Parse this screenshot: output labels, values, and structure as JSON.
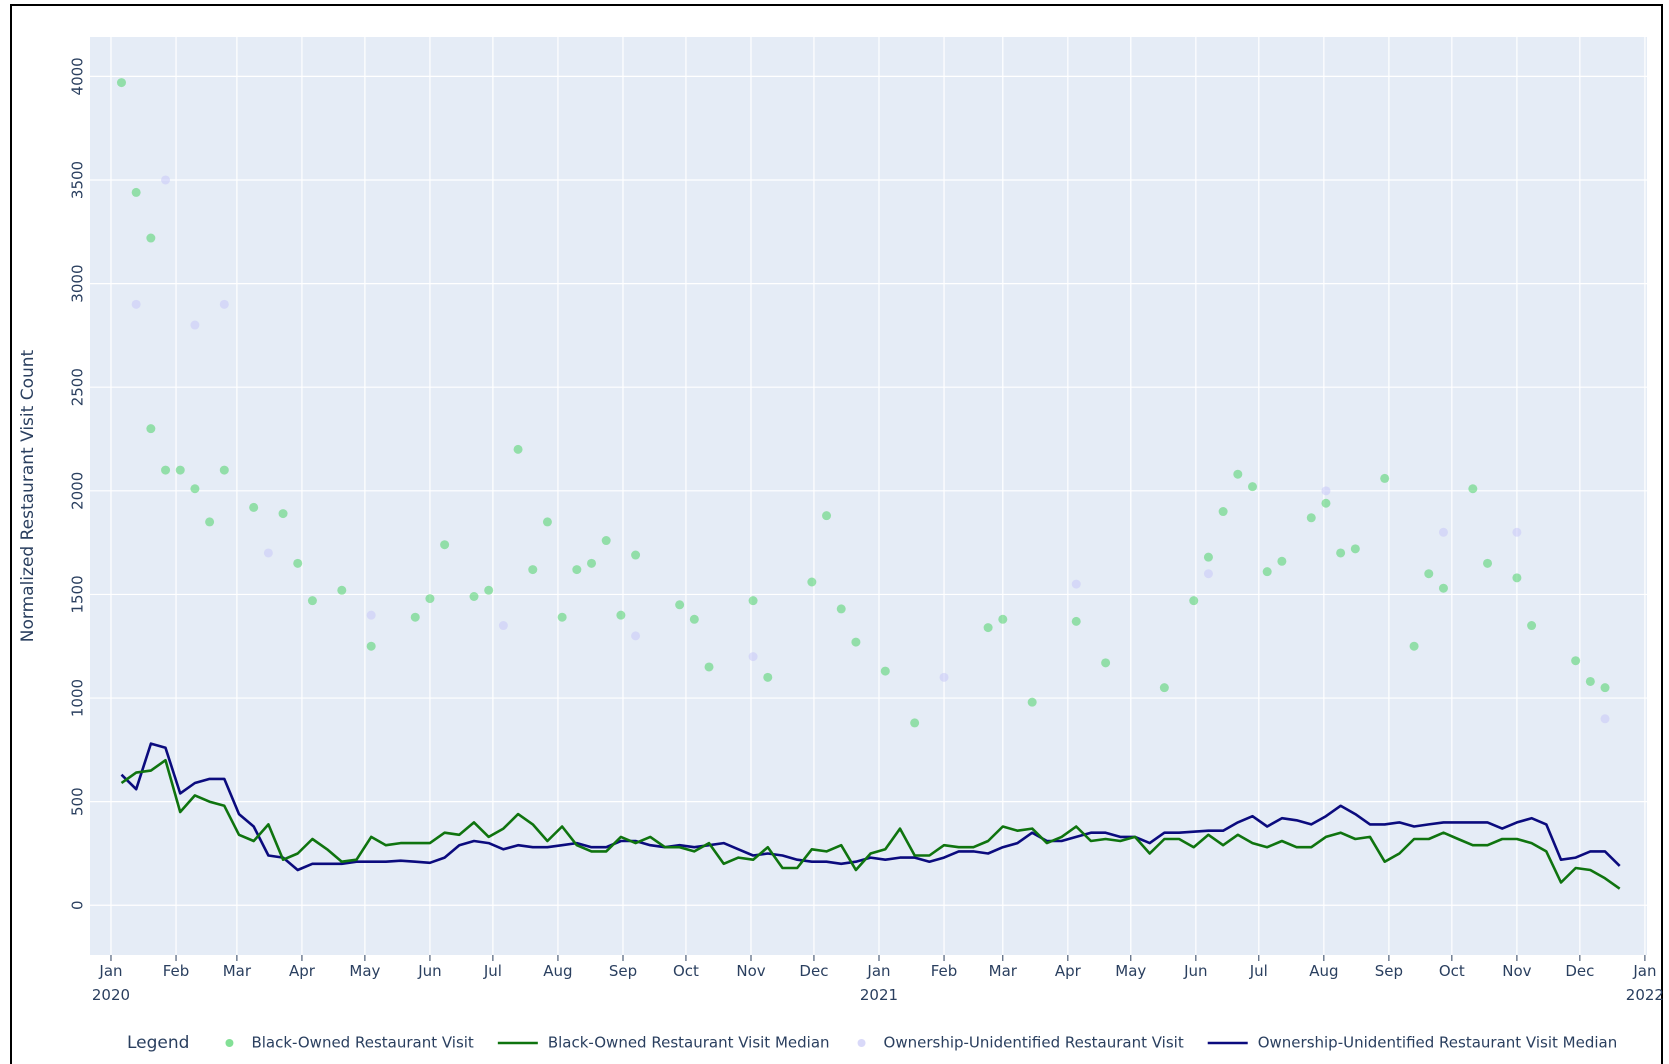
{
  "chart_data": {
    "type": "scatter",
    "y_label": "Normalized Restaurant Visit Count",
    "legend_title": "Legend",
    "xlim": [
      "2019-12-22",
      "2022-01-02"
    ],
    "ylim": [
      -240,
      4190
    ],
    "yticks": [
      0,
      500,
      1000,
      1500,
      2000,
      2500,
      3000,
      3500,
      4000
    ],
    "xticks": [
      {
        "value": "2020-01-01",
        "label": "Jan\n2020"
      },
      {
        "value": "2020-02-01",
        "label": "Feb"
      },
      {
        "value": "2020-03-01",
        "label": "Mar"
      },
      {
        "value": "2020-04-01",
        "label": "Apr"
      },
      {
        "value": "2020-05-01",
        "label": "May"
      },
      {
        "value": "2020-06-01",
        "label": "Jun"
      },
      {
        "value": "2020-07-01",
        "label": "Jul"
      },
      {
        "value": "2020-08-01",
        "label": "Aug"
      },
      {
        "value": "2020-09-01",
        "label": "Sep"
      },
      {
        "value": "2020-10-01",
        "label": "Oct"
      },
      {
        "value": "2020-11-01",
        "label": "Nov"
      },
      {
        "value": "2020-12-01",
        "label": "Dec"
      },
      {
        "value": "2021-01-01",
        "label": "Jan\n2021"
      },
      {
        "value": "2021-02-01",
        "label": "Feb"
      },
      {
        "value": "2021-03-01",
        "label": "Mar"
      },
      {
        "value": "2021-04-01",
        "label": "Apr"
      },
      {
        "value": "2021-05-01",
        "label": "May"
      },
      {
        "value": "2021-06-01",
        "label": "Jun"
      },
      {
        "value": "2021-07-01",
        "label": "Jul"
      },
      {
        "value": "2021-08-01",
        "label": "Aug"
      },
      {
        "value": "2021-09-01",
        "label": "Sep"
      },
      {
        "value": "2021-10-01",
        "label": "Oct"
      },
      {
        "value": "2021-11-01",
        "label": "Nov"
      },
      {
        "value": "2021-12-01",
        "label": "Dec"
      },
      {
        "value": "2022-01-01",
        "label": "Jan\n2022"
      }
    ],
    "grid": true,
    "legend_position": "bottom",
    "series": [
      {
        "name": "Black-Owned Restaurant Visit",
        "mode": "markers",
        "color": "#4fd36a",
        "x": [
          "2020-01-06",
          "2020-01-13",
          "2020-01-20",
          "2020-01-20",
          "2020-01-27",
          "2020-02-03",
          "2020-02-10",
          "2020-02-17",
          "2020-02-24",
          "2020-03-09",
          "2020-03-23",
          "2020-03-30",
          "2020-04-06",
          "2020-04-20",
          "2020-05-04",
          "2020-05-25",
          "2020-06-01",
          "2020-06-08",
          "2020-06-22",
          "2020-06-29",
          "2020-07-13",
          "2020-07-20",
          "2020-07-27",
          "2020-08-03",
          "2020-08-10",
          "2020-08-17",
          "2020-08-24",
          "2020-08-31",
          "2020-09-07",
          "2020-09-28",
          "2020-10-05",
          "2020-10-12",
          "2020-11-02",
          "2020-11-09",
          "2020-11-30",
          "2020-12-07",
          "2020-12-14",
          "2020-12-21",
          "2021-01-04",
          "2021-01-18",
          "2021-02-22",
          "2021-03-01",
          "2021-03-15",
          "2021-04-05",
          "2021-04-19",
          "2021-05-17",
          "2021-05-31",
          "2021-06-07",
          "2021-06-14",
          "2021-06-21",
          "2021-06-28",
          "2021-07-05",
          "2021-07-12",
          "2021-07-26",
          "2021-08-02",
          "2021-08-09",
          "2021-08-16",
          "2021-08-30",
          "2021-09-13",
          "2021-09-20",
          "2021-09-27",
          "2021-10-11",
          "2021-10-18",
          "2021-11-01",
          "2021-11-08",
          "2021-11-29",
          "2021-12-06",
          "2021-12-13"
        ],
        "values": [
          3970,
          3440,
          3220,
          2300,
          2100,
          2100,
          2010,
          1850,
          2100,
          1920,
          1890,
          1650,
          1470,
          1520,
          1250,
          1390,
          1480,
          1740,
          1490,
          1520,
          2200,
          1620,
          1850,
          1390,
          1620,
          1650,
          1760,
          1400,
          1690,
          1450,
          1380,
          1150,
          1470,
          1100,
          1560,
          1880,
          1430,
          1270,
          1130,
          880,
          1340,
          1380,
          980,
          1370,
          1170,
          1050,
          1470,
          1680,
          1900,
          2080,
          2020,
          1610,
          1660,
          1870,
          1940,
          1700,
          1720,
          2060,
          1250,
          1600,
          1530,
          2010,
          1650,
          1580,
          1350,
          1180,
          1080,
          1050
        ]
      },
      {
        "name": "Black-Owned Restaurant Visit Median",
        "mode": "lines",
        "color": "#0f740f",
        "x": "weekly",
        "values": [
          590,
          640,
          650,
          700,
          450,
          530,
          500,
          480,
          340,
          310,
          390,
          220,
          250,
          320,
          270,
          210,
          220,
          330,
          290,
          300,
          300,
          300,
          350,
          340,
          400,
          330,
          370,
          440,
          390,
          310,
          380,
          290,
          260,
          260,
          330,
          300,
          330,
          280,
          280,
          260,
          300,
          200,
          230,
          220,
          280,
          180,
          180,
          270,
          260,
          290,
          170,
          250,
          270,
          370,
          240,
          240,
          290,
          280,
          280,
          310,
          380,
          360,
          370,
          300,
          330,
          380,
          310,
          320,
          310,
          330,
          250,
          320,
          320,
          280,
          340,
          290,
          340,
          300,
          280,
          310,
          280,
          280,
          330,
          350,
          320,
          330,
          210,
          250,
          320,
          320,
          350,
          320,
          290,
          290,
          320,
          320,
          300,
          260,
          110,
          180,
          170,
          130,
          80
        ]
      },
      {
        "name": "Ownership-Unidentified Restaurant Visit",
        "mode": "markers",
        "color": "#c9c9f7",
        "x": [
          "2020-01-13",
          "2020-01-27",
          "2020-02-10",
          "2020-02-24",
          "2020-03-16",
          "2020-05-04",
          "2020-07-06",
          "2020-09-07",
          "2020-11-02",
          "2021-02-01",
          "2021-04-05",
          "2021-06-07",
          "2021-08-02",
          "2021-09-27",
          "2021-11-01",
          "2021-12-13"
        ],
        "values": [
          2900,
          3500,
          2800,
          2900,
          1700,
          1400,
          1350,
          1300,
          1200,
          1100,
          1550,
          1600,
          2000,
          1800,
          1800,
          900
        ]
      },
      {
        "name": "Ownership-Unidentified Restaurant Visit Median",
        "mode": "lines",
        "color": "#0b0b7e",
        "x": "weekly",
        "values": [
          630,
          560,
          780,
          760,
          540,
          590,
          610,
          610,
          440,
          380,
          240,
          230,
          170,
          200,
          200,
          200,
          210,
          210,
          210,
          215,
          210,
          205,
          230,
          290,
          310,
          300,
          270,
          290,
          280,
          280,
          290,
          300,
          280,
          280,
          310,
          310,
          290,
          280,
          290,
          280,
          290,
          300,
          270,
          240,
          250,
          240,
          220,
          210,
          210,
          200,
          210,
          230,
          220,
          230,
          230,
          210,
          230,
          260,
          260,
          250,
          280,
          300,
          350,
          310,
          310,
          330,
          350,
          350,
          330,
          330,
          300,
          350,
          350,
          355,
          360,
          360,
          400,
          430,
          380,
          420,
          410,
          390,
          430,
          480,
          440,
          390,
          390,
          400,
          380,
          390,
          400,
          400,
          400,
          400,
          370,
          400,
          420,
          390,
          220,
          230,
          260,
          260,
          190
        ]
      }
    ],
    "weekly_dates": [
      "2020-01-06",
      "2020-01-13",
      "2020-01-20",
      "2020-01-27",
      "2020-02-03",
      "2020-02-10",
      "2020-02-17",
      "2020-02-24",
      "2020-03-02",
      "2020-03-09",
      "2020-03-16",
      "2020-03-23",
      "2020-03-30",
      "2020-04-06",
      "2020-04-13",
      "2020-04-20",
      "2020-04-27",
      "2020-05-04",
      "2020-05-11",
      "2020-05-18",
      "2020-05-25",
      "2020-06-01",
      "2020-06-08",
      "2020-06-15",
      "2020-06-22",
      "2020-06-29",
      "2020-07-06",
      "2020-07-13",
      "2020-07-20",
      "2020-07-27",
      "2020-08-03",
      "2020-08-10",
      "2020-08-17",
      "2020-08-24",
      "2020-08-31",
      "2020-09-07",
      "2020-09-14",
      "2020-09-21",
      "2020-09-28",
      "2020-10-05",
      "2020-10-12",
      "2020-10-19",
      "2020-10-26",
      "2020-11-02",
      "2020-11-09",
      "2020-11-16",
      "2020-11-23",
      "2020-11-30",
      "2020-12-07",
      "2020-12-14",
      "2020-12-21",
      "2020-12-28",
      "2021-01-04",
      "2021-01-11",
      "2021-01-18",
      "2021-01-25",
      "2021-02-01",
      "2021-02-08",
      "2021-02-15",
      "2021-02-22",
      "2021-03-01",
      "2021-03-08",
      "2021-03-15",
      "2021-03-22",
      "2021-03-29",
      "2021-04-05",
      "2021-04-12",
      "2021-04-19",
      "2021-04-26",
      "2021-05-03",
      "2021-05-10",
      "2021-05-17",
      "2021-05-24",
      "2021-05-31",
      "2021-06-07",
      "2021-06-14",
      "2021-06-21",
      "2021-06-28",
      "2021-07-05",
      "2021-07-12",
      "2021-07-19",
      "2021-07-26",
      "2021-08-02",
      "2021-08-09",
      "2021-08-16",
      "2021-08-23",
      "2021-08-30",
      "2021-09-06",
      "2021-09-13",
      "2021-09-20",
      "2021-09-27",
      "2021-10-04",
      "2021-10-11",
      "2021-10-18",
      "2021-10-25",
      "2021-11-01",
      "2021-11-08",
      "2021-11-15",
      "2021-11-22",
      "2021-11-29",
      "2021-12-06",
      "2021-12-13",
      "2021-12-20"
    ]
  }
}
